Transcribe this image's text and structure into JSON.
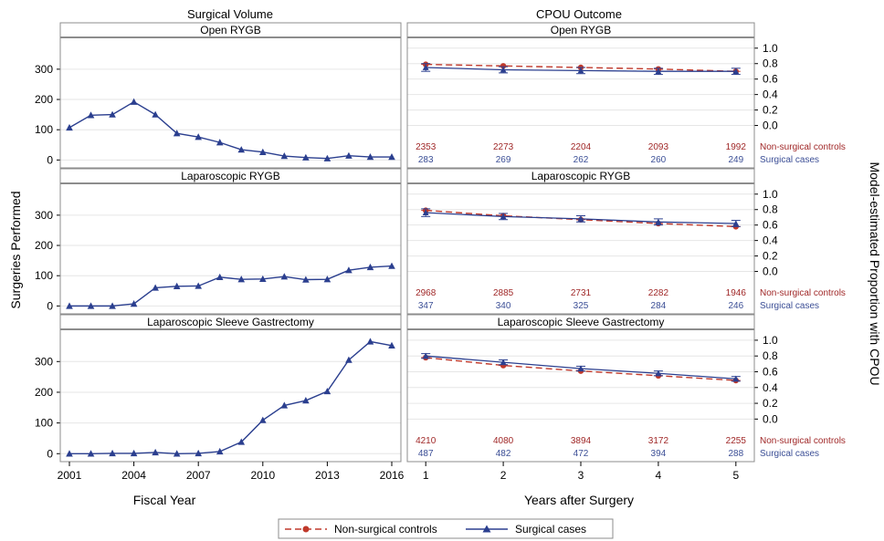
{
  "colors": {
    "controls": "#c0392b",
    "cases": "#2b3f8f",
    "count_controls": "#a02828",
    "count_cases": "#3c4f96",
    "grid": "#e6e6e6",
    "panel_border": "#8c8c8c",
    "header_bg": "#ffffff"
  },
  "column_titles": [
    "Surgical Volume",
    "CPOU Outcome"
  ],
  "legend": {
    "controls_label": "Non-surgical controls",
    "cases_label": "Surgical cases"
  },
  "chart_data": [
    {
      "type": "line",
      "title": "Surgical Volume",
      "xlabel": "Fiscal Year",
      "ylabel": "Surgeries Performed",
      "x_ticks": [
        2001,
        2004,
        2007,
        2010,
        2013,
        2016
      ],
      "y_ticks": [
        0,
        100,
        200,
        300
      ],
      "xlim": [
        2001,
        2016
      ],
      "ylim": [
        -20,
        390
      ],
      "panels": [
        {
          "name": "Open RYGB",
          "x": [
            2001,
            2002,
            2003,
            2004,
            2005,
            2006,
            2007,
            2008,
            2009,
            2010,
            2011,
            2012,
            2013,
            2014,
            2015,
            2016
          ],
          "values": [
            107,
            148,
            150,
            192,
            150,
            88,
            76,
            58,
            34,
            26,
            13,
            8,
            5,
            14,
            10,
            10
          ]
        },
        {
          "name": "Laparoscopic RYGB",
          "x": [
            2001,
            2002,
            2003,
            2004,
            2005,
            2006,
            2007,
            2008,
            2009,
            2010,
            2011,
            2012,
            2013,
            2014,
            2015,
            2016
          ],
          "values": [
            0,
            0,
            0,
            7,
            60,
            65,
            66,
            95,
            88,
            89,
            97,
            87,
            88,
            118,
            128,
            132
          ]
        },
        {
          "name": "Laparoscopic Sleeve Gastrectomy",
          "x": [
            2001,
            2002,
            2003,
            2004,
            2005,
            2006,
            2007,
            2008,
            2009,
            2010,
            2011,
            2012,
            2013,
            2014,
            2015,
            2016
          ],
          "values": [
            0,
            0,
            1,
            1,
            4,
            0,
            1,
            7,
            38,
            109,
            157,
            173,
            203,
            305,
            365,
            352
          ]
        }
      ]
    },
    {
      "type": "line",
      "title": "CPOU Outcome",
      "xlabel": "Years after Surgery",
      "ylabel": "Model-estimated Proportion with CPOU",
      "x_ticks": [
        1,
        2,
        3,
        4,
        5
      ],
      "y_ticks": [
        "0.0",
        "0.2",
        "0.4",
        "0.6",
        "0.8",
        "1.0"
      ],
      "xlim": [
        0.88,
        5.12
      ],
      "ylim": [
        -0.1,
        1.08
      ],
      "series_names": [
        "Non-surgical controls",
        "Surgical cases"
      ],
      "panels": [
        {
          "name": "Open RYGB",
          "controls": [
            0.79,
            0.77,
            0.75,
            0.73,
            0.7
          ],
          "cases": [
            0.75,
            0.72,
            0.71,
            0.7,
            0.7
          ],
          "cases_err": [
            0.05,
            0.04,
            0.04,
            0.04,
            0.04
          ],
          "counts_controls": [
            "2353",
            "2273",
            "2204",
            "2093",
            "1992"
          ],
          "counts_cases": [
            "283",
            "269",
            "262",
            "260",
            "249"
          ]
        },
        {
          "name": "Laparoscopic RYGB",
          "controls": [
            0.79,
            0.72,
            0.67,
            0.62,
            0.58
          ],
          "cases": [
            0.76,
            0.71,
            0.68,
            0.64,
            0.62
          ],
          "cases_err": [
            0.05,
            0.04,
            0.04,
            0.04,
            0.04
          ],
          "counts_controls": [
            "2968",
            "2885",
            "2731",
            "2282",
            "1946"
          ],
          "counts_cases": [
            "347",
            "340",
            "325",
            "284",
            "246"
          ]
        },
        {
          "name": "Laparoscopic Sleeve Gastrectomy",
          "controls": [
            0.78,
            0.68,
            0.61,
            0.55,
            0.49
          ],
          "cases": [
            0.8,
            0.72,
            0.64,
            0.58,
            0.51
          ],
          "cases_err": [
            0.03,
            0.03,
            0.03,
            0.03,
            0.03
          ],
          "counts_controls": [
            "4210",
            "4080",
            "3894",
            "3172",
            "2255"
          ],
          "counts_cases": [
            "487",
            "482",
            "472",
            "394",
            "288"
          ]
        }
      ]
    }
  ]
}
